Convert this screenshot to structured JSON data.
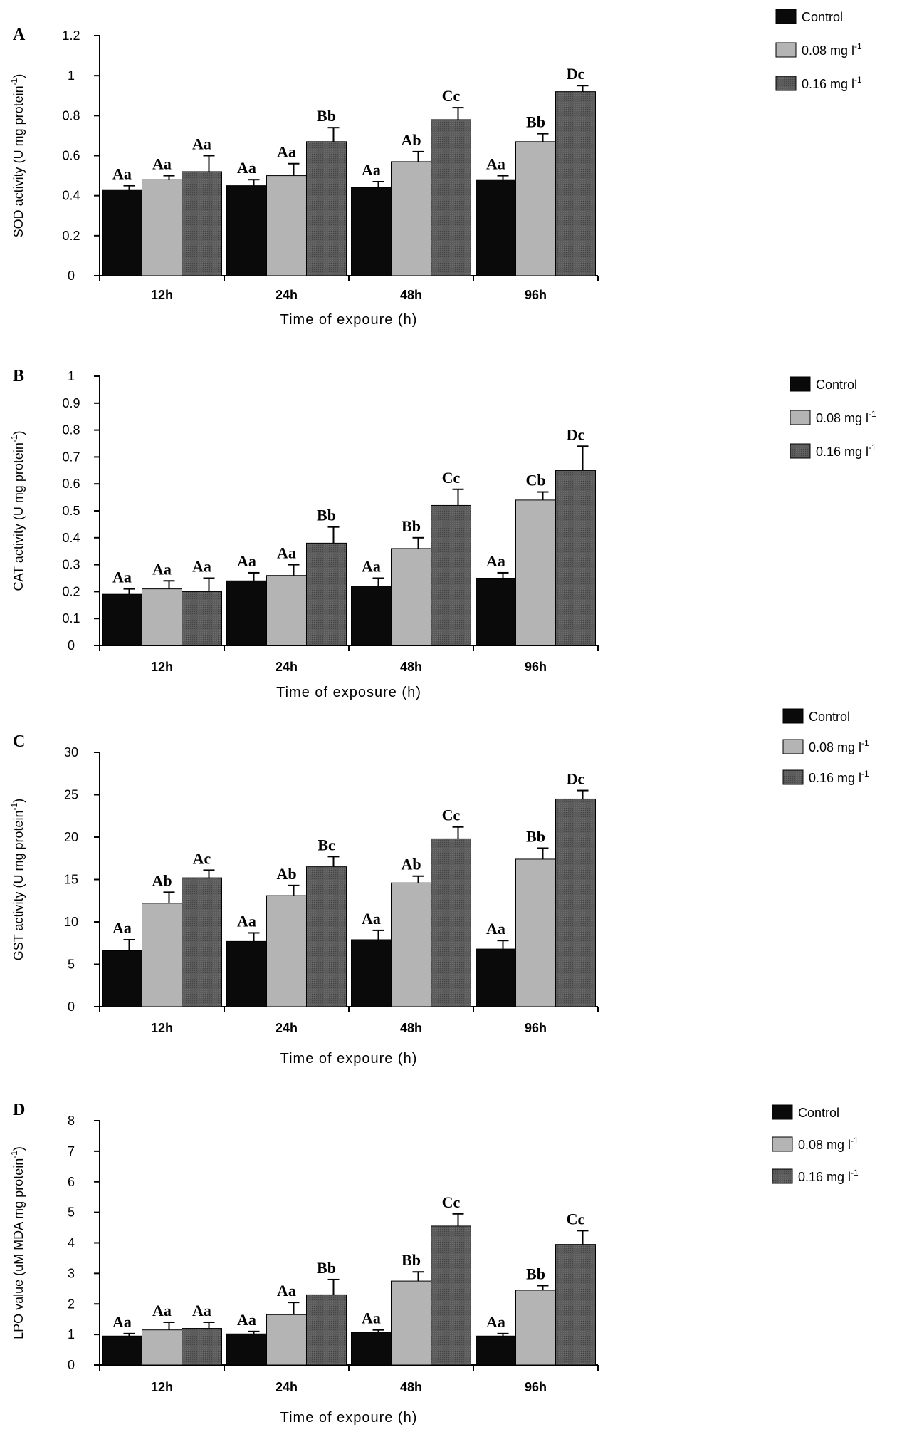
{
  "figure": {
    "colors": {
      "control": "#0a0a0a",
      "low": "#b4b4b4",
      "high": "#5a5a5a",
      "axis": "#000000",
      "background": "#ffffff"
    },
    "legend_labels": [
      "Control",
      "0.08 mg l",
      "0.16 mg l"
    ],
    "legend_superscript": "-1"
  },
  "chart_data": [
    {
      "type": "bar",
      "panel_letter": "A",
      "ylabel": "SOD activity (U mg protein",
      "ylabel_sup": "-1",
      "ylabel_tail": ")",
      "xlabel": "Time of expoure (h)",
      "categories": [
        "12h",
        "24h",
        "48h",
        "96h"
      ],
      "ylim": [
        0,
        1.2
      ],
      "yticks": [
        "0",
        "0.2",
        "0.4",
        "0.6",
        "0.8",
        "1",
        "1.2"
      ],
      "legend_position": "top-right",
      "series": [
        {
          "name": "Control",
          "values": [
            0.43,
            0.45,
            0.44,
            0.48
          ],
          "errors": [
            0.02,
            0.03,
            0.03,
            0.02
          ]
        },
        {
          "name": "0.08 mg l-1",
          "values": [
            0.48,
            0.5,
            0.57,
            0.67
          ],
          "errors": [
            0.02,
            0.06,
            0.05,
            0.04
          ]
        },
        {
          "name": "0.16 mg l-1",
          "values": [
            0.52,
            0.67,
            0.78,
            0.92
          ],
          "errors": [
            0.08,
            0.07,
            0.06,
            0.03
          ]
        }
      ],
      "annotations": [
        [
          "Aa",
          "Aa",
          "Aa"
        ],
        [
          "Aa",
          "Aa",
          "Bb"
        ],
        [
          "Aa",
          "Ab",
          "Cc"
        ],
        [
          "Aa",
          "Bb",
          "Dc"
        ]
      ]
    },
    {
      "type": "bar",
      "panel_letter": "B",
      "ylabel": "CAT activity (U mg protein",
      "ylabel_sup": "-1",
      "ylabel_tail": ")",
      "xlabel": "Time of exposure (h)",
      "categories": [
        "12h",
        "24h",
        "48h",
        "96h"
      ],
      "ylim": [
        0,
        1
      ],
      "yticks": [
        "0",
        "0.1",
        "0.2",
        "0.3",
        "0.4",
        "0.5",
        "0.6",
        "0.7",
        "0.8",
        "0.9",
        "1"
      ],
      "legend_position": "right",
      "series": [
        {
          "name": "Control",
          "values": [
            0.19,
            0.24,
            0.22,
            0.25
          ],
          "errors": [
            0.02,
            0.03,
            0.03,
            0.02
          ]
        },
        {
          "name": "0.08 mg l-1",
          "values": [
            0.21,
            0.26,
            0.36,
            0.54
          ],
          "errors": [
            0.03,
            0.04,
            0.04,
            0.03
          ]
        },
        {
          "name": "0.16 mg l-1",
          "values": [
            0.2,
            0.38,
            0.52,
            0.65
          ],
          "errors": [
            0.05,
            0.06,
            0.06,
            0.09
          ]
        }
      ],
      "annotations": [
        [
          "Aa",
          "Aa",
          "Aa"
        ],
        [
          "Aa",
          "Aa",
          "Bb"
        ],
        [
          "Aa",
          "Bb",
          "Cc"
        ],
        [
          "Aa",
          "Cb",
          "Dc"
        ]
      ]
    },
    {
      "type": "bar",
      "panel_letter": "C",
      "ylabel": "GST activity (U mg protein",
      "ylabel_sup": "-1",
      "ylabel_tail": ")",
      "xlabel": "Time of expoure (h)",
      "categories": [
        "12h",
        "24h",
        "48h",
        "96h"
      ],
      "ylim": [
        0,
        30
      ],
      "yticks": [
        "0",
        "5",
        "10",
        "15",
        "20",
        "25",
        "30"
      ],
      "legend_position": "top-right",
      "series": [
        {
          "name": "Control",
          "values": [
            6.6,
            7.7,
            7.9,
            6.8
          ],
          "errors": [
            1.3,
            1.0,
            1.1,
            1.0
          ]
        },
        {
          "name": "0.08 mg l-1",
          "values": [
            12.2,
            13.1,
            14.6,
            17.4
          ],
          "errors": [
            1.3,
            1.2,
            0.8,
            1.3
          ]
        },
        {
          "name": "0.16 mg l-1",
          "values": [
            15.2,
            16.5,
            19.8,
            24.5
          ],
          "errors": [
            0.9,
            1.2,
            1.4,
            1.0
          ]
        }
      ],
      "annotations": [
        [
          "Aa",
          "Ab",
          "Ac"
        ],
        [
          "Aa",
          "Ab",
          "Bc"
        ],
        [
          "Aa",
          "Ab",
          "Cc"
        ],
        [
          "Aa",
          "Bb",
          "Dc"
        ]
      ]
    },
    {
      "type": "bar",
      "panel_letter": "D",
      "ylabel": "LPO value (uM MDA mg protein",
      "ylabel_sup": "-1",
      "ylabel_tail": ")",
      "xlabel": "Time of expoure (h)",
      "categories": [
        "12h",
        "24h",
        "48h",
        "96h"
      ],
      "ylim": [
        0,
        8
      ],
      "yticks": [
        "0",
        "1",
        "2",
        "3",
        "4",
        "5",
        "6",
        "7",
        "8"
      ],
      "legend_position": "top-right",
      "series": [
        {
          "name": "Control",
          "values": [
            0.95,
            1.02,
            1.07,
            0.95
          ],
          "errors": [
            0.08,
            0.08,
            0.08,
            0.08
          ]
        },
        {
          "name": "0.08 mg l-1",
          "values": [
            1.15,
            1.65,
            2.75,
            2.45
          ],
          "errors": [
            0.25,
            0.4,
            0.3,
            0.15
          ]
        },
        {
          "name": "0.16 mg l-1",
          "values": [
            1.2,
            2.3,
            4.55,
            3.95
          ],
          "errors": [
            0.2,
            0.5,
            0.4,
            0.45
          ]
        }
      ],
      "annotations": [
        [
          "Aa",
          "Aa",
          "Aa"
        ],
        [
          "Aa",
          "Aa",
          "Bb"
        ],
        [
          "Aa",
          "Bb",
          "Cc"
        ],
        [
          "Aa",
          "Bb",
          "Cc"
        ]
      ]
    }
  ]
}
